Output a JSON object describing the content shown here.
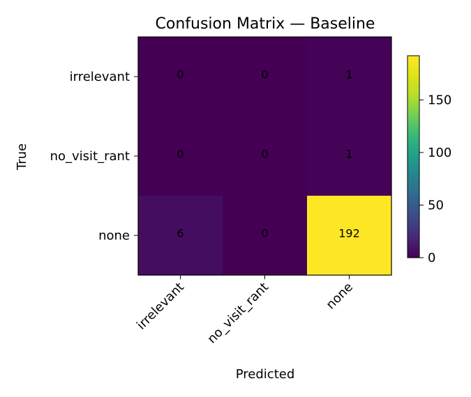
{
  "chart_data": {
    "type": "heatmap",
    "title": "Confusion Matrix — Baseline",
    "xlabel": "Predicted",
    "ylabel": "True",
    "x_categories": [
      "irrelevant",
      "no_visit_rant",
      "none"
    ],
    "y_categories": [
      "irrelevant",
      "no_visit_rant",
      "none"
    ],
    "values": [
      [
        0,
        0,
        1
      ],
      [
        0,
        0,
        1
      ],
      [
        6,
        0,
        192
      ]
    ],
    "colorbar": {
      "range": [
        0,
        192
      ],
      "ticks": [
        0,
        50,
        100,
        150
      ],
      "tick_labels": [
        "0",
        "50",
        "100",
        "150"
      ]
    },
    "colormap": "viridis"
  }
}
